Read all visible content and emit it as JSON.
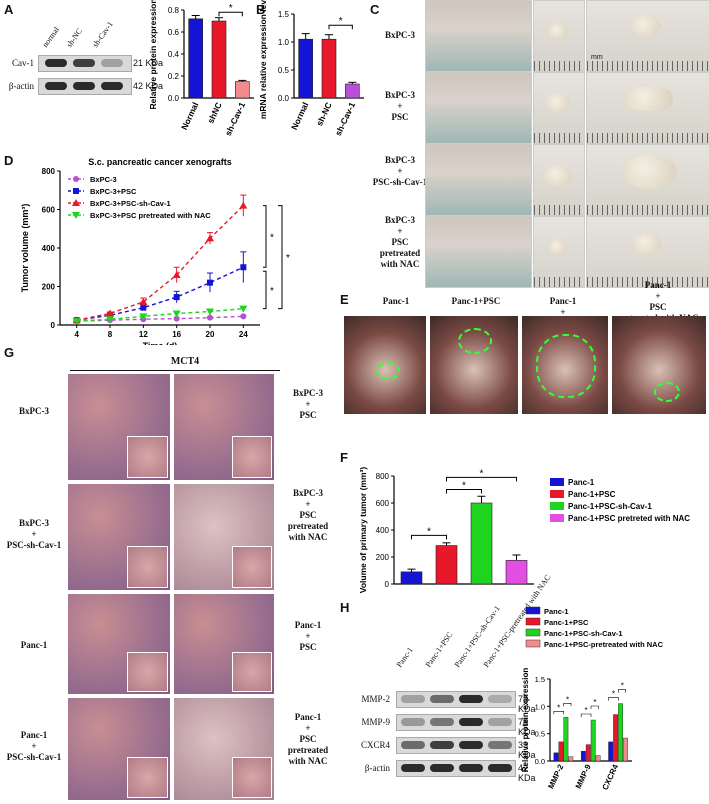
{
  "panels": {
    "A": "A",
    "B": "B",
    "C": "C",
    "D": "D",
    "E": "E",
    "F": "F",
    "G": "G",
    "H": "H"
  },
  "blot_A": {
    "lanes": [
      "normal",
      "sh-NC",
      "sh-Cav-1"
    ],
    "rows": [
      {
        "label": "Cav-1",
        "size": "21 KDa",
        "intensity": [
          0.95,
          0.85,
          0.3
        ]
      },
      {
        "label": "β-actin",
        "size": "42 KDa",
        "intensity": [
          0.95,
          0.95,
          0.95
        ]
      }
    ]
  },
  "blot_H": {
    "lanes": [
      "Panc-1",
      "Panc-1+PSC",
      "Panc-1+PSC-sh-Cav-1",
      "Panc-1+PSC-pretreated with NAC"
    ],
    "rows": [
      {
        "label": "MMP-2",
        "size": "73 KDa",
        "intensity": [
          0.3,
          0.6,
          0.95,
          0.25
        ]
      },
      {
        "label": "MMP-9",
        "size": "78 KDa",
        "intensity": [
          0.35,
          0.55,
          0.95,
          0.3
        ]
      },
      {
        "label": "CXCR4",
        "size": "33 KDa",
        "intensity": [
          0.6,
          0.85,
          0.95,
          0.55
        ]
      },
      {
        "label": "β-actin",
        "size": "42 KDa",
        "intensity": [
          0.95,
          0.95,
          0.95,
          0.95
        ]
      }
    ]
  },
  "panel_C": {
    "rows": [
      "BxPC-3",
      "BxPC-3\n+\nPSC",
      "BxPC-3\n+\nPSC-sh-Cav-1",
      "BxPC-3\n+\nPSC\npretreated\nwith NAC"
    ],
    "mm": "mm"
  },
  "panel_E": {
    "labels": [
      "Panc-1",
      "Panc-1+PSC",
      "Panc-1\n+\nPSC-sh-Cav-1",
      "Panc-1\n+\nPSC\npretreated with NAC"
    ]
  },
  "panel_G": {
    "header": "MCT4",
    "left_labels": [
      "BxPC-3",
      "BxPC-3\n+\nPSC-sh-Cav-1",
      "Panc-1",
      "Panc-1\n+\nPSC-sh-Cav-1"
    ],
    "right_labels": [
      "BxPC-3\n+\nPSC",
      "BxPC-3\n+\nPSC\npretreated\nwith NAC",
      "Panc-1\n+\nPSC",
      "Panc-1\n+\nPSC\npretreated\nwith NAC"
    ]
  },
  "colors": {
    "blue": "#1414d4",
    "red": "#e8182b",
    "pink": "#f47f7f",
    "green": "#1fd41f",
    "magenta": "#e34fe3",
    "purple": "#b84fd6",
    "lightred": "#f28b8b"
  },
  "chart_data": [
    {
      "id": "A-bar",
      "type": "bar",
      "categories": [
        "Normal",
        "shNC",
        "sh-Cav-1"
      ],
      "values": [
        0.72,
        0.7,
        0.15
      ],
      "errors": [
        0.03,
        0.03,
        0.01
      ],
      "ylabel": "Relative protein expression",
      "ylim": [
        0,
        0.8
      ],
      "yticks": [
        "0.0",
        "0.2",
        "0.4",
        "0.6",
        "0.8"
      ],
      "significance": "*"
    },
    {
      "id": "B-bar",
      "type": "bar",
      "categories": [
        "Normal",
        "sh-NC",
        "sh-Cav-1"
      ],
      "values": [
        1.05,
        1.05,
        0.25
      ],
      "errors": [
        0.1,
        0.08,
        0.03
      ],
      "ylabel": "mRNA relative expression level",
      "ylim": [
        0,
        1.5
      ],
      "yticks": [
        "0.0",
        "0.5",
        "1.0",
        "1.5"
      ],
      "significance": "*"
    },
    {
      "id": "D-line",
      "type": "line",
      "title": "S.c. pancreatic cancer xenografts",
      "x": [
        4,
        8,
        12,
        16,
        20,
        24
      ],
      "xticks": [
        "4",
        "8",
        "12",
        "16",
        "20",
        "24"
      ],
      "xlabel": "Time  (d)",
      "ylabel": "Tumor volume (mm³)",
      "ylim": [
        0,
        800
      ],
      "yticks": [
        "0",
        "200",
        "400",
        "600",
        "800"
      ],
      "series": [
        {
          "name": "BxPC-3",
          "values": [
            20,
            25,
            30,
            33,
            38,
            45
          ],
          "errors": [
            2,
            3,
            3,
            4,
            4,
            5
          ]
        },
        {
          "name": "BxPC-3+PSC",
          "values": [
            25,
            50,
            90,
            145,
            220,
            300
          ],
          "errors": [
            3,
            8,
            15,
            30,
            50,
            80
          ]
        },
        {
          "name": "BxPC-3+PSC-sh-Cav-1",
          "values": [
            25,
            60,
            120,
            260,
            450,
            620
          ],
          "errors": [
            3,
            8,
            20,
            40,
            30,
            55
          ]
        },
        {
          "name": "BxPC-3+PSC pretreated with NAC",
          "values": [
            20,
            30,
            45,
            60,
            70,
            85
          ],
          "errors": [
            2,
            3,
            5,
            6,
            8,
            10
          ]
        }
      ],
      "significance": [
        "*",
        "*",
        "*"
      ]
    },
    {
      "id": "F-bar",
      "type": "bar",
      "categories": [
        "Panc-1",
        "Panc-1+PSC",
        "Panc-1+PSC-sh-Cav-1",
        "Panc-1+PSC pretreted with NAC"
      ],
      "values": [
        90,
        285,
        600,
        175
      ],
      "errors": [
        20,
        20,
        50,
        40
      ],
      "ylabel": "Volume of primary tumor (mm³)",
      "ylim": [
        0,
        800
      ],
      "yticks": [
        "0",
        "200",
        "400",
        "600",
        "800"
      ],
      "significance": [
        "*",
        "*",
        "*"
      ]
    },
    {
      "id": "H-bar",
      "type": "bar",
      "categories": [
        "MMP-2",
        "MMP-9",
        "CXCR4"
      ],
      "series": [
        {
          "name": "Panc-1",
          "values": [
            0.15,
            0.18,
            0.35
          ]
        },
        {
          "name": "Panc-1+PSC",
          "values": [
            0.35,
            0.3,
            0.85
          ]
        },
        {
          "name": "Panc-1+PSC-sh-Cav-1",
          "values": [
            0.8,
            0.75,
            1.05
          ]
        },
        {
          "name": "Panc-1+PSC-pretreated with NAC",
          "values": [
            0.08,
            0.1,
            0.42
          ]
        }
      ],
      "ylabel": "Relative protein expression",
      "ylim": [
        0,
        1.5
      ],
      "yticks": [
        "0.0",
        "0.5",
        "1.0",
        "1.5"
      ],
      "significance": "*"
    }
  ]
}
